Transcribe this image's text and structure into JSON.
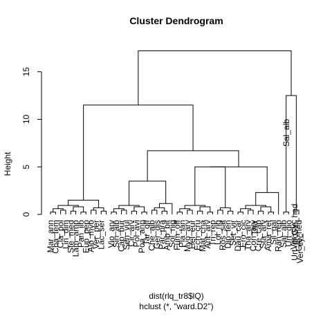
{
  "chart_data": {
    "type": "dendrogram",
    "title": "Cluster Dendrogram",
    "ylabel": "Height",
    "xlabel": "dist(rlq_tr8$lQ)",
    "sub": "hclust (*, \"ward.D2\")",
    "ylim": [
      0,
      17.5
    ],
    "yticks": [
      0,
      5,
      10,
      15
    ],
    "leaf_labels": [
      "Mar_ann",
      "Cha_tem",
      "Cla_pol",
      "Lin_dim",
      "Ste_med",
      "Lam_amp",
      "Pan_ilo",
      "Eup_pep",
      "Alo_myo",
      "Ver_per",
      "Lac_ser",
      "",
      "Vio_arv",
      "Sin_alb",
      "Cap_bur",
      "Sen_vul",
      "Cir_arv",
      "Pol_avi",
      "Poa_ann",
      "Tar_off",
      "Che_alb",
      "Ger_dis",
      "Par_pra",
      "Amb_bit",
      "Sol_nig",
      "Fum_off",
      "Pla_lan",
      "Myo_arv",
      "Hel_eur",
      "Ech_cru",
      "Mat_cha",
      "Ant_arv",
      "Tri_rep",
      "Lol_rig",
      "Ros_sat",
      "Dip_ten",
      "Set_vir",
      "Dau_car",
      "Ero_cic",
      "Tha_arv",
      "Con_arv",
      "Cre_cap",
      "Sta_arv",
      "Ama_ret",
      "Sil_gal",
      "Ran_rep",
      "Sal_alb",
      "Urt_dio",
      "Ver_cyc",
      "Gle_hed"
    ]
  },
  "extra_text": {
    "cluster_label": "Sal_alb",
    "top_leaf_a": "Urt_dio",
    "top_leaf_b": "Gle_hed",
    "top_leaf_c": "Ver_cyc",
    "mid_label": "Tha"
  }
}
